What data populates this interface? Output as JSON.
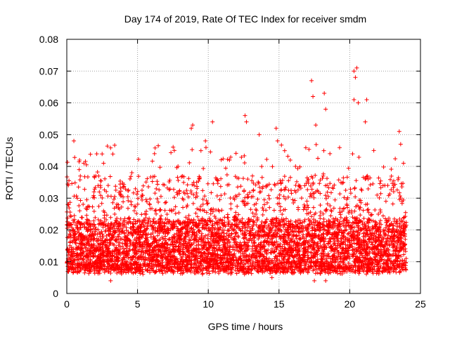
{
  "chart_data": {
    "type": "scatter",
    "title": "Day 174 of 2019, Rate Of TEC Index for receiver smdm",
    "xlabel": "GPS time / hours",
    "ylabel": "ROTI / TECUs",
    "xlim": [
      0,
      25
    ],
    "ylim": [
      0,
      0.08
    ],
    "grid": true,
    "marker": "+",
    "x_ticks": [
      0,
      5,
      10,
      15,
      20,
      25
    ],
    "x_tick_labels": [
      "0",
      "5",
      "10",
      "15",
      "20",
      "25"
    ],
    "y_ticks": [
      0,
      0.01,
      0.02,
      0.03,
      0.04,
      0.05,
      0.06,
      0.07,
      0.08
    ],
    "y_tick_labels": [
      "0",
      "0.01",
      "0.02",
      "0.03",
      "0.04",
      "0.05",
      "0.06",
      "0.07",
      "0.08"
    ],
    "series": [
      {
        "name": "ROTI",
        "color": "#ff0000",
        "typical_range": [
          0.006,
          0.03
        ],
        "x_range": [
          0,
          24
        ],
        "points": [
          {
            "x": 0.5,
            "y": 0.048
          },
          {
            "x": 0.9,
            "y": 0.042
          },
          {
            "x": 1.2,
            "y": 0.041
          },
          {
            "x": 2.6,
            "y": 0.041
          },
          {
            "x": 4.6,
            "y": 0.038
          },
          {
            "x": 6.2,
            "y": 0.044
          },
          {
            "x": 7.6,
            "y": 0.045
          },
          {
            "x": 8.8,
            "y": 0.052
          },
          {
            "x": 8.9,
            "y": 0.053
          },
          {
            "x": 9.8,
            "y": 0.048
          },
          {
            "x": 10.3,
            "y": 0.054
          },
          {
            "x": 11.5,
            "y": 0.042
          },
          {
            "x": 12.6,
            "y": 0.056
          },
          {
            "x": 12.7,
            "y": 0.054
          },
          {
            "x": 13.6,
            "y": 0.05
          },
          {
            "x": 14.8,
            "y": 0.052
          },
          {
            "x": 14.9,
            "y": 0.048
          },
          {
            "x": 15.8,
            "y": 0.042
          },
          {
            "x": 17.3,
            "y": 0.067
          },
          {
            "x": 17.4,
            "y": 0.062
          },
          {
            "x": 17.6,
            "y": 0.053
          },
          {
            "x": 18.2,
            "y": 0.063
          },
          {
            "x": 18.3,
            "y": 0.058
          },
          {
            "x": 18.6,
            "y": 0.044
          },
          {
            "x": 20.3,
            "y": 0.07
          },
          {
            "x": 20.5,
            "y": 0.071
          },
          {
            "x": 20.4,
            "y": 0.068
          },
          {
            "x": 20.6,
            "y": 0.06
          },
          {
            "x": 20.3,
            "y": 0.061
          },
          {
            "x": 21.2,
            "y": 0.061
          },
          {
            "x": 21.1,
            "y": 0.054
          },
          {
            "x": 21.7,
            "y": 0.045
          },
          {
            "x": 23.5,
            "y": 0.051
          },
          {
            "x": 23.6,
            "y": 0.047
          },
          {
            "x": 23.8,
            "y": 0.041
          },
          {
            "x": 17.5,
            "y": 0.004
          },
          {
            "x": 18.3,
            "y": 0.004
          },
          {
            "x": 14.5,
            "y": 0.005
          },
          {
            "x": 3.1,
            "y": 0.004
          }
        ]
      }
    ]
  }
}
